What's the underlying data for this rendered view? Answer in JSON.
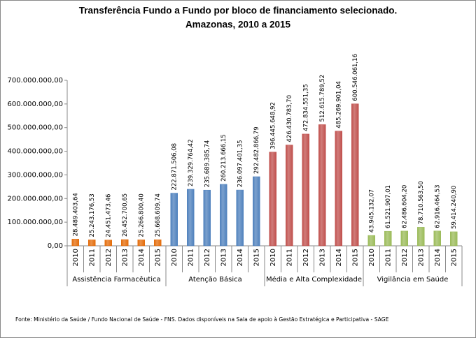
{
  "chart_data": {
    "type": "bar",
    "title": "Transferência Fundo a Fundo por bloco de financiamento selecionado.",
    "subtitle": "Amazonas, 2010 a 2015",
    "categories": [
      "2010",
      "2011",
      "2012",
      "2013",
      "2014",
      "2015"
    ],
    "series": [
      {
        "name": "Assistência Farmacêutica",
        "color": "#e46c0a",
        "values": [
          28489403.64,
          25243176.53,
          24451473.46,
          26452700.65,
          25266800.4,
          25668609.74
        ],
        "value_labels": [
          "28.489.403,64",
          "25.243.176,53",
          "24.451.473,46",
          "26.452.700,65",
          "25.266.800,40",
          "25.668.609,74"
        ]
      },
      {
        "name": "Atenção Básica",
        "color": "#4f81bd",
        "values": [
          222871506.08,
          239329764.42,
          235689385.74,
          260213666.15,
          236097401.35,
          292482866.79
        ],
        "value_labels": [
          "222.871.506,08",
          "239.329.764,42",
          "235.689.385,74",
          "260.213.666,15",
          "236.097.401,35",
          "292.482.866,79"
        ]
      },
      {
        "name": "Média e Alta Complexidade",
        "color": "#c0504d",
        "values": [
          396445648.92,
          426430783.7,
          472834551.35,
          512615789.52,
          485269901.04,
          600546061.16
        ],
        "value_labels": [
          "396.445.648,92",
          "426.430.783,70",
          "472.834.551,35",
          "512.615.789,52",
          "485.269.901,04",
          "600.546.061,16"
        ]
      },
      {
        "name": "Vigilância em Saúde",
        "color": "#9bbb59",
        "values": [
          43945132.07,
          61521907.01,
          62486604.2,
          78710563.5,
          62916464.53,
          59414240.9
        ],
        "value_labels": [
          "43.945.132,07",
          "61.521.907,01",
          "62.486.604,20",
          "78.710.563,50",
          "62.916.464,53",
          "59.414.240,90"
        ]
      }
    ],
    "ylim": [
      0,
      700000000
    ],
    "yticks": [
      {
        "value": 0,
        "label": "0,00"
      },
      {
        "value": 100000000,
        "label": "100.000.000,00"
      },
      {
        "value": 200000000,
        "label": "200.000.000,00"
      },
      {
        "value": 300000000,
        "label": "300.000.000,00"
      },
      {
        "value": 400000000,
        "label": "400.000.000,00"
      },
      {
        "value": 500000000,
        "label": "500.000.000,00"
      },
      {
        "value": 600000000,
        "label": "600.000.000,00"
      },
      {
        "value": 700000000,
        "label": "700.000.000,00"
      }
    ],
    "source": "Fonte: Ministério da Saúde / Fundo Nacional de Saúde - FNS. Dados disponíveis na Sala de apoio à Gestão Estratégica e Participativa - SAGE"
  }
}
